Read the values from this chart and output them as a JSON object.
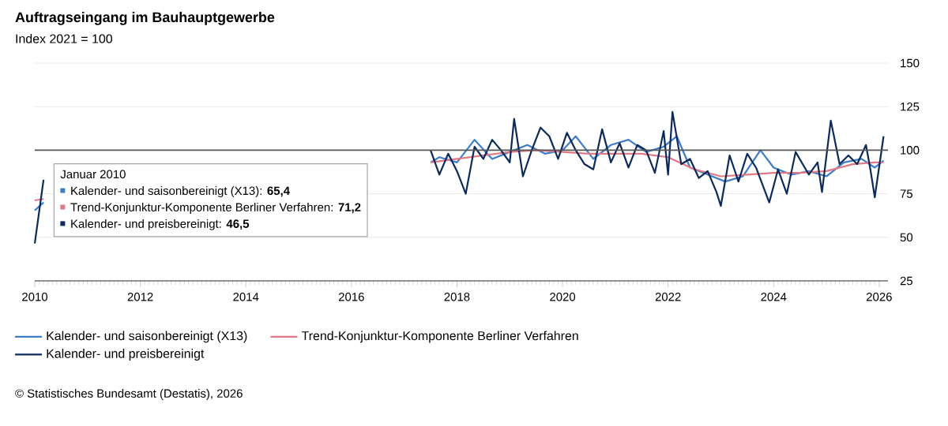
{
  "chart_data": {
    "type": "line",
    "title": "Auftragseingang im Bauhauptgewerbe",
    "subtitle": "Index 2021 = 100",
    "xlim": [
      "2010-01",
      "2026-03"
    ],
    "xticks": [
      "2010",
      "2012",
      "2014",
      "2016",
      "2018",
      "2020",
      "2022",
      "2024",
      "2026"
    ],
    "ylim": [
      25,
      150
    ],
    "yticks": [
      25,
      50,
      75,
      100,
      125,
      150
    ],
    "grid": "y",
    "legend": "bottom",
    "ref_lines": [
      {
        "axis": "y",
        "value": 100,
        "color": "#555555"
      }
    ],
    "annotations": [
      "Januar 2010",
      "Kalender- und saisonbereinigt (X13): **65,4**",
      "Trend-Konjunktur-Komponente Berliner Verfahren: **71,2**",
      "Kalender- und preisbereinigt: **46,5**",
      "© Statistisches Bundesamt (Destatis), 2026"
    ],
    "series": [
      {
        "name": "Kalender- und saisonbereinigt (X13)",
        "color": "#3f7dc9",
        "x": [
          "2010-01",
          "2010-03",
          "2010-05",
          "2017-07",
          "2017-09",
          "2018-01",
          "2018-05",
          "2018-09",
          "2019-01",
          "2019-05",
          "2019-09",
          "2020-01",
          "2020-04",
          "2020-08",
          "2020-12",
          "2021-04",
          "2021-08",
          "2021-12",
          "2022-03",
          "2022-06",
          "2022-10",
          "2023-02",
          "2023-06",
          "2023-10",
          "2024-01",
          "2024-05",
          "2024-09",
          "2025-01",
          "2025-05",
          "2025-09",
          "2025-12",
          "2026-02"
        ],
        "values": [
          65.4,
          70,
          null,
          93,
          96,
          93,
          106,
          95,
          99,
          103,
          98,
          100,
          108,
          95,
          103,
          106,
          99,
          102,
          108,
          90,
          86,
          82,
          85,
          100,
          90,
          86,
          88,
          85,
          93,
          95,
          90,
          94
        ]
      },
      {
        "name": "Trend-Konjunktur-Komponente Berliner Verfahren",
        "color": "#e07a86",
        "x": [
          "2010-01",
          "2010-03",
          "2010-05",
          "2017-07",
          "2018-01",
          "2018-07",
          "2019-01",
          "2019-07",
          "2020-01",
          "2020-07",
          "2021-01",
          "2021-07",
          "2022-01",
          "2022-07",
          "2023-01",
          "2023-07",
          "2024-01",
          "2024-07",
          "2025-01",
          "2025-07",
          "2025-12",
          "2026-02"
        ],
        "values": [
          71.2,
          72,
          null,
          93,
          95,
          97,
          99,
          100,
          99,
          98,
          98,
          98,
          96,
          89,
          85,
          86,
          87,
          87,
          88,
          92,
          93,
          93
        ]
      },
      {
        "name": "Kalender- und preisbereinigt",
        "color": "#0c2a5a",
        "x": [
          "2010-01",
          "2010-03",
          "2010-05",
          "2017-07",
          "2017-09",
          "2017-11",
          "2018-01",
          "2018-03",
          "2018-05",
          "2018-07",
          "2018-09",
          "2018-11",
          "2019-01",
          "2019-02",
          "2019-04",
          "2019-06",
          "2019-08",
          "2019-10",
          "2019-12",
          "2020-02",
          "2020-04",
          "2020-06",
          "2020-08",
          "2020-10",
          "2020-12",
          "2021-02",
          "2021-04",
          "2021-06",
          "2021-08",
          "2021-10",
          "2021-12",
          "2022-01",
          "2022-02",
          "2022-04",
          "2022-06",
          "2022-08",
          "2022-10",
          "2022-12",
          "2023-01",
          "2023-03",
          "2023-05",
          "2023-07",
          "2023-09",
          "2023-12",
          "2024-02",
          "2024-04",
          "2024-06",
          "2024-09",
          "2024-11",
          "2024-12",
          "2025-02",
          "2025-04",
          "2025-06",
          "2025-08",
          "2025-10",
          "2025-11",
          "2025-12",
          "2026-02"
        ],
        "values": [
          46.5,
          83,
          null,
          100,
          86,
          98,
          88,
          75,
          102,
          95,
          106,
          100,
          93,
          118,
          85,
          100,
          113,
          108,
          95,
          110,
          100,
          92,
          89,
          112,
          93,
          104,
          90,
          103,
          100,
          87,
          111,
          86,
          122,
          92,
          95,
          84,
          88,
          76,
          68,
          97,
          82,
          98,
          90,
          70,
          89,
          75,
          99,
          86,
          93,
          76,
          117,
          92,
          97,
          92,
          103,
          89,
          73,
          108
        ]
      }
    ]
  }
}
